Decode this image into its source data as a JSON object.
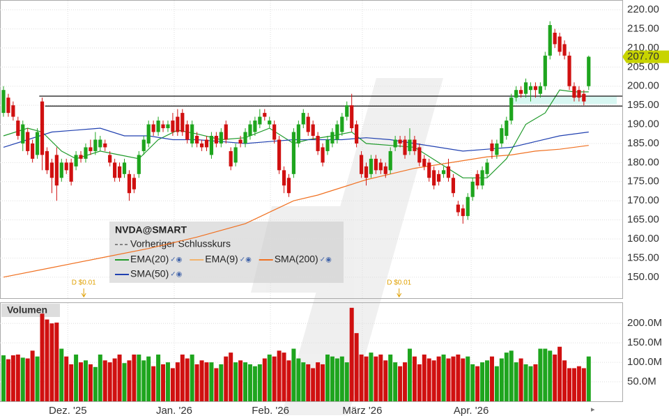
{
  "chart_data": [
    {
      "type": "candlestick",
      "symbol": "NVDA@SMART",
      "prev_close_label": "Vorheriger Schlusskurs",
      "xlim": [
        -0.72,
        127.95
      ],
      "ylim": [
        144.5,
        222.2
      ],
      "yticks": [
        {
          "value": 150,
          "label": "150.00"
        },
        {
          "value": 155,
          "label": "155.00"
        },
        {
          "value": 160,
          "label": "160.00"
        },
        {
          "value": 165,
          "label": "165.00"
        },
        {
          "value": 170,
          "label": "170.00"
        },
        {
          "value": 175,
          "label": "175.00"
        },
        {
          "value": 180,
          "label": "180.00"
        },
        {
          "value": 185,
          "label": "185.00"
        },
        {
          "value": 190,
          "label": "190.00"
        },
        {
          "value": 195,
          "label": "195.00"
        },
        {
          "value": 200,
          "label": "200.00"
        },
        {
          "value": 205,
          "label": "205.00"
        },
        {
          "value": 210,
          "label": "210.00"
        },
        {
          "value": 215,
          "label": "215.00"
        },
        {
          "value": 220,
          "label": "220.00"
        }
      ],
      "xticks": [
        {
          "value": 13.3,
          "label": "Dez. '25"
        },
        {
          "value": 35.3,
          "label": "Jan. '26"
        },
        {
          "value": 55.2,
          "label": "Feb. '26"
        },
        {
          "value": 74.2,
          "label": "März '26"
        },
        {
          "value": 96.7,
          "label": "Apr. '26"
        }
      ],
      "grid": true,
      "up_color": "#1ea51e",
      "down_color": "#d01010",
      "last": {
        "value": 207.7,
        "label": "207.70",
        "color": "#c8d400"
      },
      "levels": [
        {
          "value": 197.4,
          "start": 7.4
        },
        {
          "value": 194.8,
          "start": 8.6
        }
      ],
      "zone": {
        "low": 195.3,
        "high": 197.3,
        "start": 104.5,
        "color": "#d8f7f2"
      },
      "events": [
        {
          "x": 16.6,
          "label": "D $0.01"
        },
        {
          "x": 81.8,
          "label": "D $0.01"
        }
      ],
      "ohlc": [
        [
          193,
          200,
          192,
          199
        ],
        [
          197,
          198,
          192,
          193
        ],
        [
          195,
          196,
          191,
          192
        ],
        [
          191,
          192,
          186,
          187
        ],
        [
          185,
          191,
          183,
          190
        ],
        [
          188,
          189,
          182,
          183
        ],
        [
          185,
          186,
          180,
          181
        ],
        [
          182,
          189,
          181,
          188
        ],
        [
          196,
          197,
          178,
          182
        ],
        [
          183,
          184,
          177,
          178
        ],
        [
          180,
          181,
          172,
          176
        ],
        [
          182,
          184,
          170,
          174
        ],
        [
          176,
          181,
          175,
          180
        ],
        [
          180,
          181,
          177,
          178
        ],
        [
          180,
          181,
          174,
          175
        ],
        [
          179,
          183,
          178,
          182
        ],
        [
          182,
          183,
          180,
          181
        ],
        [
          181,
          185,
          180,
          184
        ],
        [
          184,
          186,
          182,
          183
        ],
        [
          183,
          188,
          182,
          186
        ],
        [
          184,
          187,
          183,
          186
        ],
        [
          185,
          186,
          183,
          184
        ],
        [
          182,
          183,
          179,
          180
        ],
        [
          180,
          181,
          175,
          176
        ],
        [
          179,
          180,
          175,
          176
        ],
        [
          177,
          181,
          176,
          180
        ],
        [
          177,
          178,
          170,
          172
        ],
        [
          176,
          177,
          172,
          173
        ],
        [
          177,
          183,
          176,
          182
        ],
        [
          183,
          187,
          182,
          186
        ],
        [
          185,
          191,
          184,
          190
        ],
        [
          190,
          191,
          187,
          188
        ],
        [
          188,
          192,
          187,
          191
        ],
        [
          190,
          191,
          188,
          189
        ],
        [
          189,
          191,
          188,
          190
        ],
        [
          191,
          193,
          187,
          188
        ],
        [
          192,
          194,
          187,
          188
        ],
        [
          193,
          194,
          187,
          188
        ],
        [
          190,
          191,
          185,
          186
        ],
        [
          185,
          191,
          184,
          190
        ],
        [
          187,
          188,
          184,
          185
        ],
        [
          185,
          186,
          183,
          184
        ],
        [
          186,
          187,
          183,
          184
        ],
        [
          182,
          188,
          181,
          187
        ],
        [
          187,
          188,
          184,
          185
        ],
        [
          185,
          189,
          184,
          188
        ],
        [
          190,
          191,
          185,
          186
        ],
        [
          183,
          184,
          178,
          179
        ],
        [
          180,
          185,
          179,
          184
        ],
        [
          186,
          187,
          184,
          185
        ],
        [
          185,
          189,
          184,
          188
        ],
        [
          187,
          191,
          186,
          190
        ],
        [
          188,
          192,
          187,
          191
        ],
        [
          190,
          194,
          189,
          192
        ],
        [
          193,
          194,
          191,
          192
        ],
        [
          190,
          192,
          189,
          191
        ],
        [
          190,
          191,
          185,
          186
        ],
        [
          186,
          187,
          177,
          178
        ],
        [
          178,
          179,
          172,
          174
        ],
        [
          176,
          177,
          171,
          172
        ],
        [
          177,
          189,
          176,
          188
        ],
        [
          185,
          191,
          184,
          190
        ],
        [
          190,
          194,
          189,
          193
        ],
        [
          192,
          193,
          187,
          188
        ],
        [
          190,
          191,
          186,
          187
        ],
        [
          187,
          188,
          182,
          183
        ],
        [
          184,
          185,
          179,
          180
        ],
        [
          183,
          187,
          182,
          186
        ],
        [
          185,
          189,
          184,
          188
        ],
        [
          186,
          191,
          185,
          190
        ],
        [
          188,
          193,
          187,
          192
        ],
        [
          192,
          196,
          191,
          195
        ],
        [
          195,
          198,
          188,
          189
        ],
        [
          190,
          191,
          184,
          185
        ],
        [
          182,
          183,
          176,
          177
        ],
        [
          179,
          180,
          174,
          176
        ],
        [
          177,
          182,
          176,
          181
        ],
        [
          181,
          182,
          177,
          178
        ],
        [
          180,
          181,
          177,
          178
        ],
        [
          179,
          180,
          176,
          177
        ],
        [
          178,
          184,
          177,
          183
        ],
        [
          184,
          187,
          183,
          186
        ],
        [
          186,
          187,
          184,
          185
        ],
        [
          186,
          187,
          181,
          182
        ],
        [
          183,
          189,
          182,
          186
        ],
        [
          186,
          187,
          182,
          183
        ],
        [
          184,
          185,
          179,
          180
        ],
        [
          181,
          182,
          178,
          179
        ],
        [
          180,
          181,
          175,
          176
        ],
        [
          178,
          179,
          173,
          174
        ],
        [
          177,
          178,
          174,
          175
        ],
        [
          177,
          179,
          176,
          178
        ],
        [
          179,
          181,
          175,
          176
        ],
        [
          176,
          177,
          171,
          172
        ],
        [
          169,
          170,
          166,
          167
        ],
        [
          168,
          169,
          164,
          166
        ],
        [
          166,
          172,
          165,
          171
        ],
        [
          171,
          176,
          170,
          175
        ],
        [
          177,
          178,
          173,
          174
        ],
        [
          174,
          179,
          173,
          178
        ],
        [
          177,
          181,
          176,
          180
        ],
        [
          185,
          186,
          181,
          183
        ],
        [
          182,
          186,
          181,
          185
        ],
        [
          185,
          190,
          184,
          189
        ],
        [
          187,
          192,
          186,
          191
        ],
        [
          191,
          198,
          190,
          197
        ],
        [
          197,
          200,
          196,
          199
        ],
        [
          199,
          200,
          197,
          198
        ],
        [
          198,
          202,
          197,
          201
        ],
        [
          199,
          201,
          196,
          200
        ],
        [
          200,
          201,
          197,
          199
        ],
        [
          198,
          201,
          197,
          200
        ],
        [
          200,
          209,
          199,
          208
        ],
        [
          208,
          217,
          207,
          216
        ],
        [
          214,
          215,
          210,
          211
        ],
        [
          213,
          214,
          208,
          209
        ],
        [
          211,
          212,
          207,
          208
        ],
        [
          208,
          209,
          199,
          200
        ],
        [
          200,
          201,
          196,
          197
        ],
        [
          199,
          200,
          196,
          197
        ],
        [
          198,
          199,
          195,
          196
        ],
        [
          200,
          208,
          199,
          207.7
        ]
      ],
      "overlays": [
        {
          "name": "EMA(20)",
          "color": "#1f9a2a",
          "x": [
            0,
            5,
            8,
            12,
            15,
            20,
            24,
            28,
            32,
            36,
            40,
            45,
            50,
            55,
            60,
            63,
            68,
            72,
            75,
            80,
            85,
            90,
            95,
            100,
            104,
            108,
            112,
            115,
            118,
            121
          ],
          "values": [
            187,
            189,
            188,
            183,
            181,
            183,
            182,
            181,
            186,
            188.5,
            187.5,
            186,
            186.5,
            189,
            185,
            186,
            187,
            188,
            185,
            184.5,
            184,
            180,
            176,
            176,
            181,
            190,
            193,
            199,
            198.5,
            198.5
          ]
        },
        {
          "name": "EMA(9)",
          "color": "#f2b36b"
        },
        {
          "name": "SMA(200)",
          "color": "#f07020",
          "x": [
            0,
            10,
            20,
            30,
            40,
            50,
            55,
            60,
            65,
            70,
            75,
            80,
            85,
            90,
            95,
            100,
            105,
            110,
            115,
            121
          ],
          "values": [
            150,
            152.5,
            155,
            157.5,
            160.5,
            164,
            167,
            170,
            171.5,
            173.5,
            175.5,
            177,
            178.5,
            179.5,
            180.5,
            181.5,
            182,
            183,
            183.5,
            184.5
          ]
        },
        {
          "name": "SMA(50)",
          "color": "#2040b0",
          "x": [
            0,
            5,
            10,
            15,
            20,
            25,
            30,
            35,
            40,
            45,
            50,
            55,
            60,
            65,
            70,
            75,
            80,
            85,
            90,
            95,
            100,
            105,
            110,
            115,
            121
          ],
          "values": [
            184,
            186,
            188,
            188.5,
            189,
            187,
            187,
            186,
            186,
            185.5,
            185,
            185.5,
            186,
            186,
            186,
            186.5,
            186,
            185,
            184,
            183,
            183.5,
            184,
            185.5,
            187,
            188
          ]
        }
      ]
    },
    {
      "type": "bar",
      "title": "Volumen",
      "ylim": [
        0,
        254
      ],
      "yticks": [
        {
          "value": 50,
          "label": "50.0M"
        },
        {
          "value": 100,
          "label": "100.0M"
        },
        {
          "value": 150,
          "label": "150.0M"
        },
        {
          "value": 200,
          "label": "200.0M"
        }
      ],
      "values": [
        118,
        108,
        118,
        120,
        112,
        110,
        130,
        115,
        225,
        210,
        200,
        202,
        135,
        115,
        95,
        120,
        100,
        105,
        95,
        88,
        120,
        105,
        100,
        110,
        120,
        98,
        105,
        120,
        120,
        105,
        115,
        90,
        120,
        95,
        100,
        85,
        100,
        120,
        110,
        120,
        95,
        105,
        100,
        100,
        85,
        95,
        115,
        125,
        100,
        105,
        100,
        95,
        90,
        95,
        110,
        120,
        115,
        130,
        125,
        105,
        135,
        110,
        100,
        95,
        85,
        100,
        95,
        120,
        115,
        110,
        115,
        100,
        240,
        175,
        120,
        115,
        125,
        115,
        120,
        105,
        120,
        100,
        90,
        100,
        135,
        115,
        95,
        120,
        110,
        105,
        115,
        120,
        110,
        115,
        120,
        110,
        115,
        95,
        90,
        100,
        105,
        115,
        90,
        110,
        125,
        130,
        100,
        110,
        95,
        90,
        95,
        135,
        135,
        130,
        120,
        140,
        105,
        85,
        85,
        90,
        85,
        115
      ]
    }
  ]
}
